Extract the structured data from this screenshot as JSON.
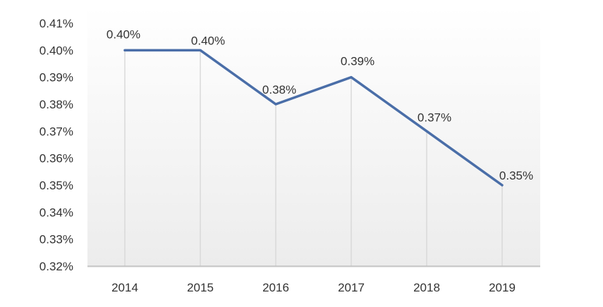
{
  "chart_data": {
    "type": "line",
    "title": "",
    "xlabel": "",
    "ylabel": "",
    "categories": [
      "2014",
      "2015",
      "2016",
      "2017",
      "2018",
      "2019"
    ],
    "series": [
      {
        "values": [
          0.4,
          0.4,
          0.38,
          0.39,
          0.37,
          0.35
        ],
        "data_labels": [
          "0.40%",
          "0.40%",
          "0.38%",
          "0.39%",
          "0.37%",
          "0.35%"
        ],
        "color": "#4a6ea8"
      }
    ],
    "y_ticks": [
      0.32,
      0.33,
      0.34,
      0.35,
      0.36,
      0.37,
      0.38,
      0.39,
      0.4,
      0.41
    ],
    "y_tick_labels": [
      "0.32%",
      "0.33%",
      "0.34%",
      "0.35%",
      "0.36%",
      "0.37%",
      "0.38%",
      "0.39%",
      "0.40%",
      "0.41%"
    ],
    "ylim": [
      0.32,
      0.41
    ],
    "grid": "vertical drop lines at categories",
    "legend": "none",
    "colors": {
      "line": "#4a6ea8",
      "drop_line": "#d9d9d9",
      "axis": "#bfbfbf",
      "background_top": "#ffffff",
      "background_bottom": "#ececec"
    }
  }
}
